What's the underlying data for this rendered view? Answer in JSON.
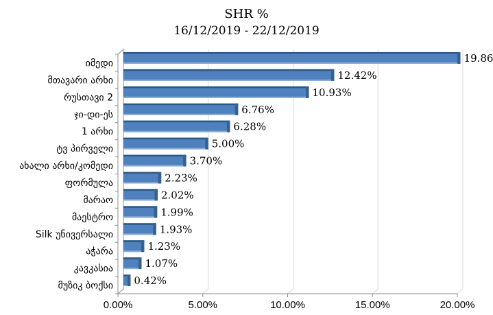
{
  "page": {
    "background": "#ffffff"
  },
  "header": {
    "title": "SHR %",
    "subtitle": "16/12/2019 - 22/12/2019"
  },
  "chart_data": {
    "type": "bar",
    "orientation": "horizontal",
    "title": "SHR %",
    "subtitle": "16/12/2019 - 22/12/2019",
    "categories": [
      "იმედი",
      "მთავარი არხი",
      "რუსთავი 2",
      "ჯი-დი-ეს",
      "1 არხი",
      "ტვ პირველი",
      "ახალი არხი/კომედი",
      "ფორმულა",
      "მარაო",
      "მაესტრო",
      "Silk უნივერსალი",
      "აჭარა",
      "კავკასია",
      "მუზიკ ბოქსი"
    ],
    "values": [
      19.86,
      12.42,
      10.93,
      6.76,
      6.28,
      5.0,
      3.7,
      2.23,
      2.02,
      1.99,
      1.93,
      1.23,
      1.07,
      0.42
    ],
    "value_labels": [
      "19.86%",
      "12.42%",
      "10.93%",
      "6.76%",
      "6.28%",
      "5.00%",
      "3.70%",
      "2.23%",
      "2.02%",
      "1.99%",
      "1.93%",
      "1.23%",
      "1.07%",
      "0.42%"
    ],
    "x_ticks": [
      "0.00%",
      "5.00%",
      "10.00%",
      "15.00%",
      "20.00%"
    ],
    "xlim": [
      0,
      20
    ],
    "grid": true,
    "legend": false,
    "style_3d": true,
    "colors": {
      "bar": "#4E81BD",
      "bar_top_edge": "#2E5984",
      "bar_end_cap": "#36618E",
      "bar_bottom_edge": "#8FAED4",
      "gridline": "#D9D9D9",
      "axis": "#8C8C8C",
      "text": "#000000"
    }
  }
}
